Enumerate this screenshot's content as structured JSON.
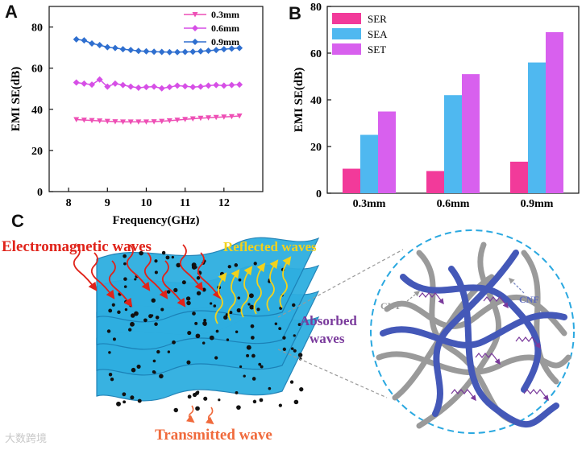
{
  "panels": {
    "a": "A",
    "b": "B",
    "c": "C"
  },
  "chart_data": [
    {
      "type": "line",
      "xlabel": "Frequency(GHz)",
      "ylabel": "EMI SE(dB)",
      "xlim": [
        7.5,
        13
      ],
      "ylim": [
        0,
        90
      ],
      "xticks": [
        8,
        9,
        10,
        11,
        12
      ],
      "yticks": [
        0,
        20,
        40,
        60,
        80
      ],
      "legend_position": "top-right",
      "grid": false,
      "x": [
        8.2,
        8.4,
        8.6,
        8.8,
        9.0,
        9.2,
        9.4,
        9.6,
        9.8,
        10.0,
        10.2,
        10.4,
        10.6,
        10.8,
        11.0,
        11.2,
        11.4,
        11.6,
        11.8,
        12.0,
        12.2,
        12.4
      ],
      "series": [
        {
          "name": "0.3mm",
          "color": "#ee4fb5",
          "marker": "triangle-down",
          "values": [
            35.0,
            34.8,
            34.6,
            34.4,
            34.2,
            34.0,
            33.9,
            33.9,
            33.9,
            33.9,
            34.0,
            34.2,
            34.5,
            34.8,
            35.1,
            35.4,
            35.7,
            35.9,
            36.1,
            36.3,
            36.5,
            36.8
          ]
        },
        {
          "name": "0.6mm",
          "color": "#d64fe6",
          "marker": "diamond",
          "values": [
            53.0,
            52.5,
            52.0,
            54.5,
            51.0,
            52.5,
            51.8,
            51.0,
            50.5,
            50.8,
            51.0,
            50.2,
            50.8,
            51.5,
            51.2,
            50.8,
            51.0,
            51.5,
            51.8,
            51.5,
            51.8,
            52.0
          ]
        },
        {
          "name": "0.9mm",
          "color": "#2f6fcf",
          "marker": "diamond",
          "values": [
            74.0,
            73.5,
            72.0,
            71.2,
            70.2,
            69.8,
            69.2,
            68.8,
            68.4,
            68.2,
            68.0,
            67.9,
            67.8,
            67.8,
            67.9,
            68.0,
            68.2,
            68.5,
            68.8,
            69.2,
            69.5,
            69.8
          ]
        }
      ]
    },
    {
      "type": "bar",
      "ylabel": "EMI SE(dB)",
      "ylim": [
        0,
        80
      ],
      "yticks": [
        0,
        20,
        40,
        60,
        80
      ],
      "categories": [
        "0.3mm",
        "0.6mm",
        "0.9mm"
      ],
      "legend_position": "top-left",
      "grid": false,
      "series": [
        {
          "name": "SER",
          "color": "#f23a9a",
          "values": [
            10.5,
            9.5,
            13.5
          ]
        },
        {
          "name": "SEA",
          "color": "#4fb8f0",
          "values": [
            25,
            42,
            56
          ]
        },
        {
          "name": "SET",
          "color": "#d860ee",
          "values": [
            35,
            51,
            69
          ]
        }
      ]
    }
  ],
  "diagram": {
    "labels": {
      "incident": "Electromagnetic waves",
      "reflected": "Reflected waves",
      "absorbed": "Absorbed\nwaves",
      "transmitted": "Transmitted wave",
      "cnt": "CNT",
      "cnf": "CNF"
    },
    "colors": {
      "incident": "#e0231a",
      "reflected": "#f2d21c",
      "absorbed": "#7a3a9c",
      "transmitted": "#f06a3c",
      "layer": "#2eaee0",
      "cnt": "#9a9a9a",
      "cnf": "#4458b8"
    }
  },
  "watermark": "大数跨境"
}
